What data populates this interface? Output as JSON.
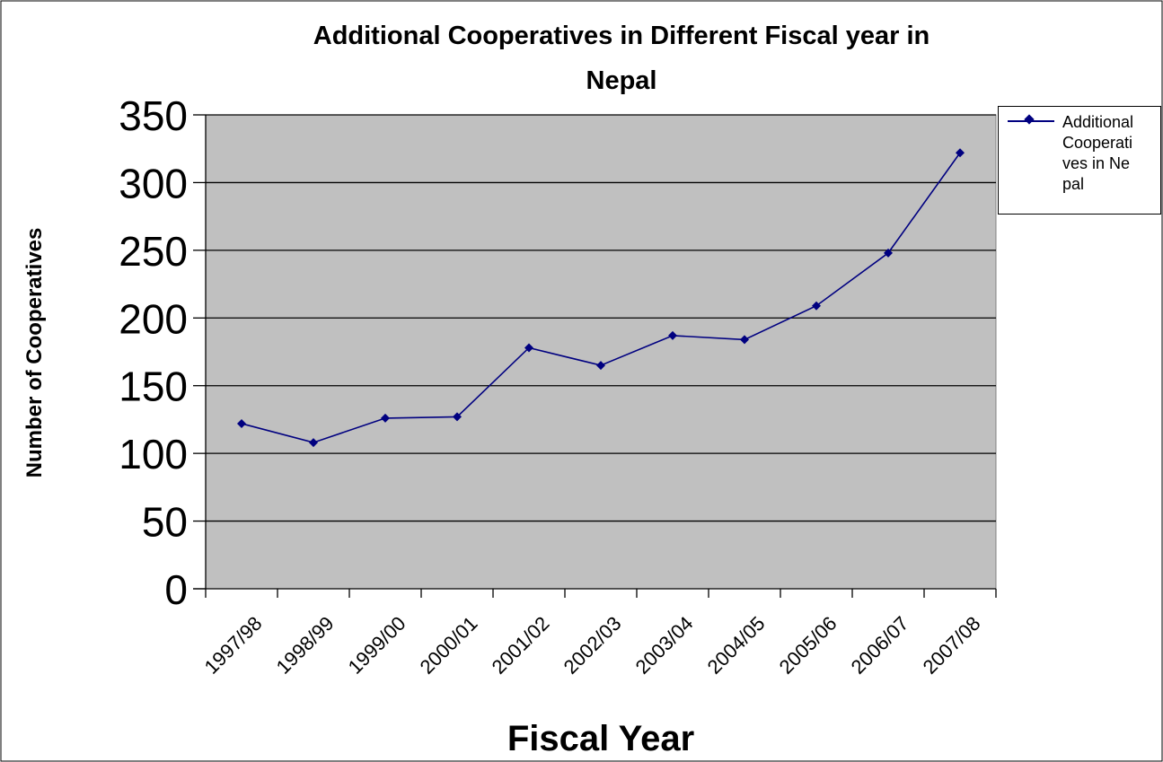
{
  "chart_data": {
    "type": "line",
    "title": "Additional Cooperatives in Different Fiscal year in Nepal",
    "xlabel": "Fiscal Year",
    "ylabel": "Number of Cooperatives",
    "ylim": [
      0,
      350
    ],
    "yticks": [
      "0",
      "50",
      "100",
      "150",
      "200",
      "250",
      "300",
      "350"
    ],
    "categories": [
      "1997/98",
      "1998/99",
      "1999/00",
      "2000/01",
      "2001/02",
      "2002/03",
      "2003/04",
      "2004/05",
      "2005/06",
      "2006/07",
      "2007/08"
    ],
    "series": [
      {
        "name": "Additional Cooperatives in Nepal",
        "values": [
          122,
          108,
          126,
          127,
          178,
          165,
          187,
          184,
          209,
          248,
          322
        ]
      }
    ],
    "grid": true,
    "legend_position": "right",
    "colors": {
      "plot_bg": "#c0c0c0",
      "series": "#000080",
      "gridline": "#000000"
    }
  }
}
